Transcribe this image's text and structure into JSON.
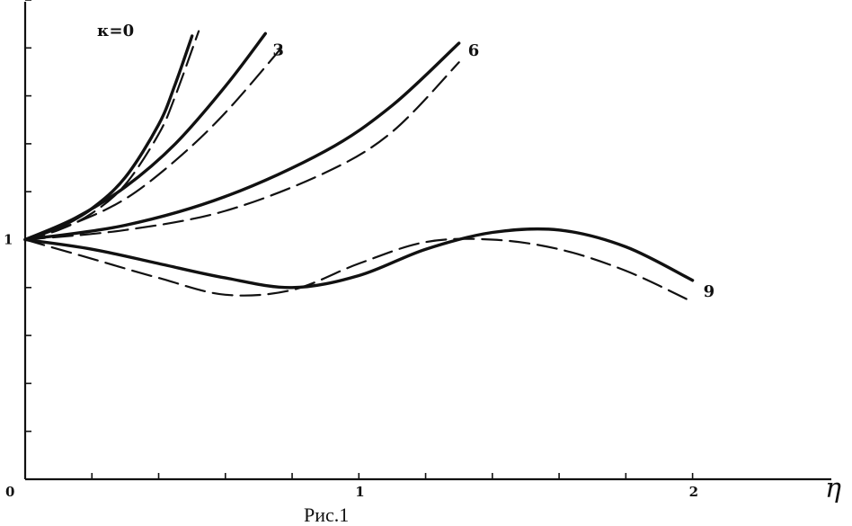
{
  "chart_data": {
    "type": "line",
    "caption": "Рис.1",
    "xlabel": "η",
    "ylabel": "",
    "xlim": [
      0,
      2.3
    ],
    "ylim": [
      0,
      2.0
    ],
    "x_tick_labels": [
      {
        "value": 0,
        "label": "0"
      },
      {
        "value": 1,
        "label": "1"
      },
      {
        "value": 2,
        "label": "2"
      }
    ],
    "y_tick_labels": [
      {
        "value": 1,
        "label": "1"
      }
    ],
    "x_minor_ticks": [
      0.2,
      0.4,
      0.6,
      0.8,
      1.0,
      1.2,
      1.4,
      1.6,
      1.8,
      2.0
    ],
    "y_minor_ticks": [
      0.2,
      0.4,
      0.6,
      0.8,
      1.2,
      1.4,
      1.6,
      1.8,
      2.0
    ],
    "series": [
      {
        "name": "κ=0",
        "label_text": "κ=0",
        "style": "solid",
        "x": [
          0,
          0.1,
          0.2,
          0.3,
          0.4,
          0.45,
          0.5
        ],
        "y": [
          1,
          1.05,
          1.13,
          1.26,
          1.48,
          1.65,
          1.85
        ]
      },
      {
        "name": "κ=0",
        "label_text": "",
        "style": "dashed",
        "x": [
          0,
          0.1,
          0.2,
          0.3,
          0.4,
          0.45,
          0.52
        ],
        "y": [
          1,
          1.04,
          1.11,
          1.23,
          1.44,
          1.6,
          1.87
        ]
      },
      {
        "name": "3",
        "label_text": "3",
        "style": "solid",
        "x": [
          0,
          0.15,
          0.3,
          0.45,
          0.6,
          0.72
        ],
        "y": [
          1,
          1.09,
          1.22,
          1.4,
          1.64,
          1.86
        ]
      },
      {
        "name": "3",
        "label_text": "",
        "style": "dashed",
        "x": [
          0,
          0.15,
          0.3,
          0.45,
          0.6,
          0.78
        ],
        "y": [
          1,
          1.07,
          1.17,
          1.33,
          1.53,
          1.82
        ]
      },
      {
        "name": "6",
        "label_text": "6",
        "style": "solid",
        "x": [
          0,
          0.3,
          0.6,
          0.9,
          1.1,
          1.3
        ],
        "y": [
          1,
          1.06,
          1.18,
          1.37,
          1.56,
          1.82
        ]
      },
      {
        "name": "6",
        "label_text": "",
        "style": "dashed",
        "x": [
          0,
          0.3,
          0.6,
          0.9,
          1.1,
          1.3
        ],
        "y": [
          1,
          1.04,
          1.12,
          1.28,
          1.45,
          1.74
        ]
      },
      {
        "name": "9",
        "label_text": "9",
        "style": "solid",
        "x": [
          0,
          0.2,
          0.4,
          0.6,
          0.8,
          1.0,
          1.2,
          1.4,
          1.6,
          1.8,
          2.0
        ],
        "y": [
          1,
          0.96,
          0.9,
          0.84,
          0.8,
          0.85,
          0.96,
          1.03,
          1.04,
          0.97,
          0.83
        ]
      },
      {
        "name": "9",
        "label_text": "",
        "style": "dashed",
        "x": [
          0,
          0.2,
          0.4,
          0.6,
          0.8,
          1.0,
          1.2,
          1.4,
          1.6,
          1.8,
          2.0
        ],
        "y": [
          1,
          0.92,
          0.84,
          0.77,
          0.79,
          0.9,
          0.99,
          1.0,
          0.96,
          0.87,
          0.74
        ]
      }
    ]
  }
}
